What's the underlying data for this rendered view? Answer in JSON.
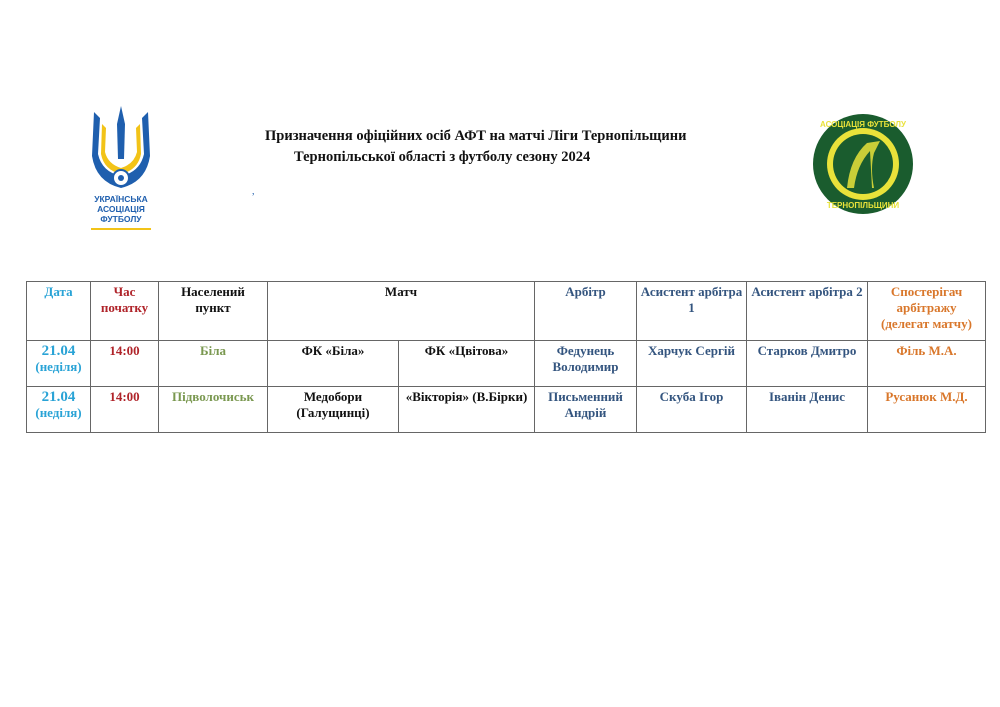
{
  "header": {
    "title_line1": "Призначення офіційних осіб АФТ на матчі Ліги Тернопільщини",
    "title_line2": "Тернопільської області з футболу сезону 2024",
    "mark": ","
  },
  "logos": {
    "left": "УКРАЇНСЬКА АСОЦІАЦІЯ ФУТБОЛУ",
    "right": "АСОЦІАЦІЯ ФУТБОЛУ ТЕРНОПІЛЬЩИНИ"
  },
  "colors": {
    "date": "#29a3d6",
    "time": "#b0242a",
    "place": "#7a9850",
    "referees": "#34557f",
    "observer": "#d9772b"
  },
  "table": {
    "headers": {
      "date": "Дата",
      "time": "Час початку",
      "place": "Населений пункт",
      "match": "Матч",
      "referee": "Арбітр",
      "assistant1": "Асистент арбітра 1",
      "assistant2": "Асистент арбітра 2",
      "observer": "Спостерігач арбітражу (делегат матчу)"
    },
    "rows": [
      {
        "date": "21.04",
        "day": "(неділя)",
        "time": "14:00",
        "place": "Біла",
        "home": "ФК «Біла»",
        "away": "ФК «Цвітова»",
        "referee": "Федунець Володимир",
        "assistant1": "Харчук Сергій",
        "assistant2": "Старков Дмитро",
        "observer": "Філь М.А."
      },
      {
        "date": "21.04",
        "day": "(неділя)",
        "time": "14:00",
        "place": "Підволочиськ",
        "home": "Медобори (Галущинці)",
        "away": "«Вікторія» (В.Бірки)",
        "referee": "Письменний Андрій",
        "assistant1": "Скуба Ігор",
        "assistant2": "Іванін Денис",
        "observer": "Русанюк М.Д."
      }
    ]
  }
}
